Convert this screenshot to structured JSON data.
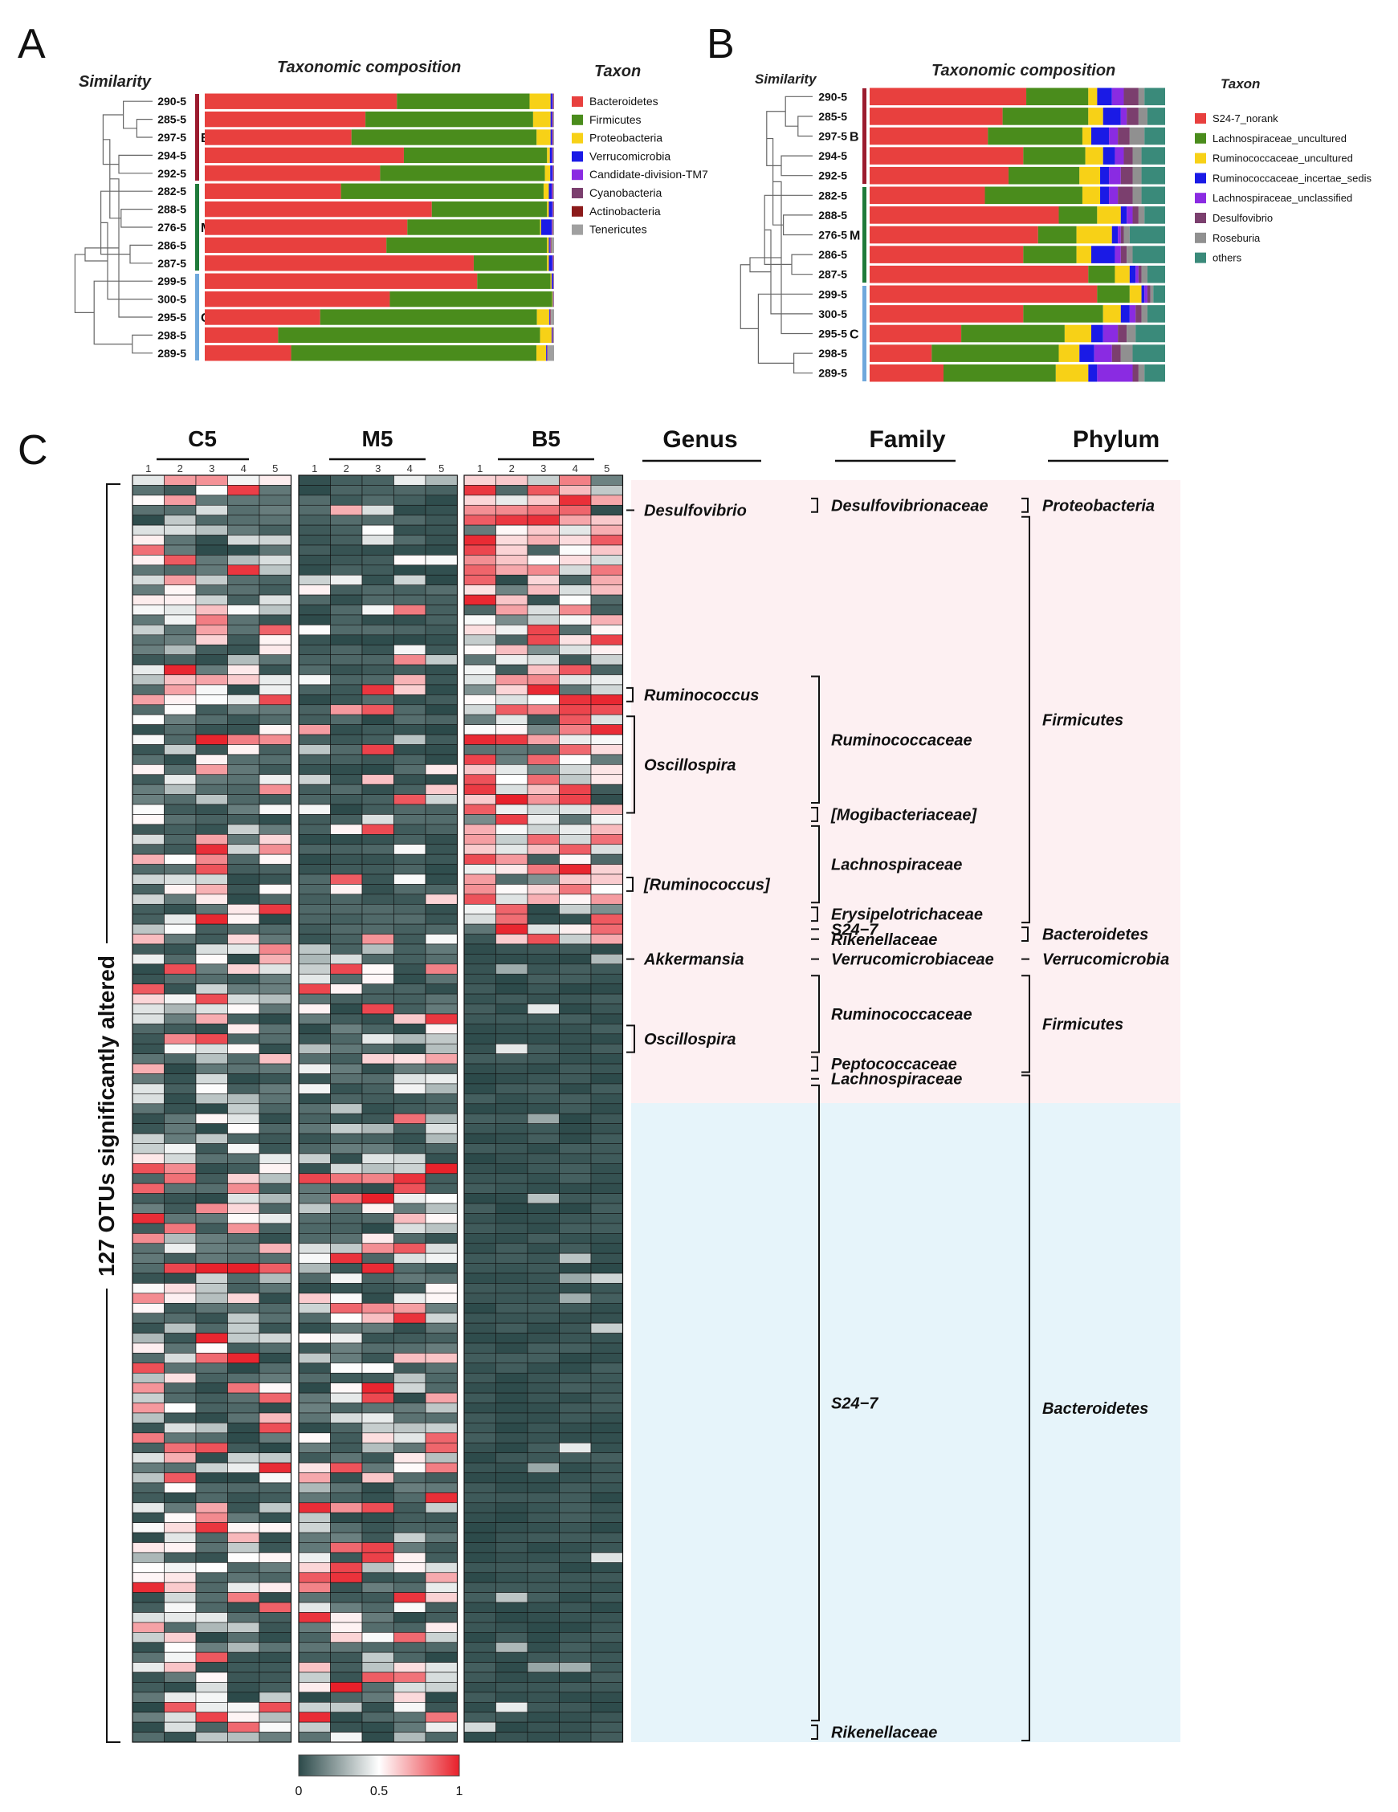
{
  "panels": {
    "a": "A",
    "b": "B",
    "c": "C"
  },
  "chart_data": [
    {
      "type": "bar",
      "orientation": "horizontal-stacked",
      "panel": "A",
      "title": "Taxonomic composition",
      "similarity_label": "Similarity",
      "legend_title": "Taxon",
      "samples": [
        "290-5",
        "285-5",
        "297-5",
        "294-5",
        "292-5",
        "282-5",
        "288-5",
        "276-5",
        "286-5",
        "287-5",
        "299-5",
        "300-5",
        "295-5",
        "298-5",
        "289-5"
      ],
      "group_labels": [
        {
          "label": "B",
          "rows": [
            0,
            4
          ]
        },
        {
          "label": "M",
          "rows": [
            5,
            9
          ]
        },
        {
          "label": "C",
          "rows": [
            10,
            14
          ]
        }
      ],
      "series": [
        {
          "name": "Bacteroidetes",
          "color": "#e8403e",
          "values": [
            55,
            46,
            42,
            57,
            50,
            39,
            65,
            58,
            52,
            77,
            78,
            53,
            33,
            21,
            25
          ]
        },
        {
          "name": "Firmicutes",
          "color": "#4a8c1c",
          "values": [
            38,
            48,
            53,
            41,
            47,
            58,
            33,
            38,
            46,
            21,
            21,
            46.5,
            62,
            75,
            71
          ]
        },
        {
          "name": "Proteobacteria",
          "color": "#f7d117",
          "values": [
            6,
            5,
            4,
            0.8,
            1.5,
            1.5,
            0.5,
            0.3,
            0.5,
            0.5,
            0.3,
            0.2,
            3.5,
            3.3,
            2.8
          ]
        },
        {
          "name": "Verrucomicrobia",
          "color": "#1a1ae6",
          "values": [
            0.5,
            0.4,
            0.4,
            0.6,
            0.6,
            0.8,
            1.0,
            3.0,
            0.3,
            1.0,
            0.4,
            0.1,
            0.2,
            0.2,
            0.2
          ]
        },
        {
          "name": "Candidate-division-TM7",
          "color": "#8a2be2",
          "values": [
            0.2,
            0.2,
            0.2,
            0.2,
            0.2,
            0.3,
            0.2,
            0.2,
            0.2,
            0.2,
            0.1,
            0.1,
            0.1,
            0.1,
            0.1
          ]
        },
        {
          "name": "Cyanobacteria",
          "color": "#7b3f6e",
          "values": [
            0.1,
            0.1,
            0.1,
            0.1,
            0.1,
            0.1,
            0.1,
            0.1,
            0.1,
            0.1,
            0.1,
            0.05,
            0.1,
            0.1,
            0.1
          ]
        },
        {
          "name": "Actinobacteria",
          "color": "#8b1a1a",
          "values": [
            0.1,
            0.1,
            0.1,
            0.1,
            0.1,
            0.1,
            0.1,
            0.1,
            0.1,
            0.1,
            0.05,
            0.05,
            0.1,
            0.1,
            0.1
          ]
        },
        {
          "name": "Tenericutes",
          "color": "#a0a0a0",
          "values": [
            0.1,
            0.2,
            0.2,
            0.2,
            0.1,
            0.2,
            0.1,
            0.3,
            0.8,
            0.1,
            0.05,
            0.05,
            0.9,
            0.2,
            1.8
          ]
        }
      ]
    },
    {
      "type": "bar",
      "orientation": "horizontal-stacked",
      "panel": "B",
      "title": "Taxonomic composition",
      "similarity_label": "Similarity",
      "legend_title": "Taxon",
      "samples": [
        "290-5",
        "285-5",
        "297-5",
        "294-5",
        "292-5",
        "282-5",
        "288-5",
        "276-5",
        "286-5",
        "287-5",
        "299-5",
        "300-5",
        "295-5",
        "298-5",
        "289-5"
      ],
      "group_labels": [
        {
          "label": "B",
          "rows": [
            0,
            4
          ]
        },
        {
          "label": "M",
          "rows": [
            5,
            9
          ]
        },
        {
          "label": "C",
          "rows": [
            10,
            14
          ]
        }
      ],
      "series": [
        {
          "name": "S24-7_norank",
          "color": "#e8403e",
          "values": [
            53,
            45,
            40,
            52,
            47,
            39,
            64,
            57,
            52,
            74,
            77,
            52,
            31,
            21,
            25
          ]
        },
        {
          "name": "Lachnospiraceae_uncultured",
          "color": "#4a8c1c",
          "values": [
            21,
            29,
            32,
            21,
            24,
            33,
            13,
            13,
            18,
            9,
            11,
            27,
            35,
            43,
            38
          ]
        },
        {
          "name": "Ruminococcaceae_uncultured",
          "color": "#f7d117",
          "values": [
            3,
            5,
            3,
            6,
            7,
            6,
            8,
            12,
            5,
            5,
            4,
            6,
            9,
            7,
            11
          ]
        },
        {
          "name": "Ruminococcaceae_incertae_sedis",
          "color": "#1a1ae6",
          "values": [
            5,
            6,
            6,
            4,
            3,
            3,
            2,
            2,
            8,
            2,
            1,
            3,
            4,
            5,
            3
          ]
        },
        {
          "name": "Lachnospiraceae_unclassified",
          "color": "#8a2be2",
          "values": [
            4,
            2,
            3,
            3,
            4,
            3,
            2,
            1,
            2,
            1,
            1,
            2,
            5,
            6,
            12
          ]
        },
        {
          "name": "Desulfovibrio",
          "color": "#7b3f6e",
          "values": [
            5,
            4,
            4,
            3,
            4,
            5,
            2,
            1,
            2,
            1,
            1,
            2,
            3,
            3,
            2
          ]
        },
        {
          "name": "Roseburia",
          "color": "#909090",
          "values": [
            2,
            3,
            5,
            3,
            3,
            3,
            2,
            2,
            2,
            2,
            1,
            2,
            3,
            4,
            2
          ]
        },
        {
          "name": "others",
          "color": "#3a8a7a",
          "values": [
            7,
            6,
            7,
            8,
            8,
            8,
            7,
            12,
            11,
            6,
            4,
            6,
            10,
            11,
            7
          ]
        }
      ]
    },
    {
      "type": "heatmap",
      "panel": "C",
      "groups": [
        "C5",
        "M5",
        "B5"
      ],
      "replicates": [
        "1",
        "2",
        "3",
        "4",
        "5"
      ],
      "n_rows": 127,
      "row_axis_label": "127 OTUs significantly altered",
      "colorbar": {
        "ticks": [
          "0",
          "0.5",
          "1"
        ],
        "colors": [
          "#2c4a4a",
          "#ffffff",
          "#e8202a"
        ]
      },
      "column_headers": {
        "genus": "Genus",
        "family": "Family",
        "phylum": "Phylum"
      },
      "block_split_row": 47,
      "genus_annotations": [
        {
          "label": "Desulfovibrio",
          "rows": [
            3,
            3
          ]
        },
        {
          "label": "Ruminococcus",
          "rows": [
            21,
            22
          ]
        },
        {
          "label": "Oscillospira",
          "rows": [
            24,
            33
          ]
        },
        {
          "label": "[Ruminococcus]",
          "rows": [
            40,
            41
          ]
        },
        {
          "label": "Akkermansia",
          "rows": [
            48,
            48
          ]
        },
        {
          "label": "Oscillospira",
          "rows": [
            55,
            57
          ]
        }
      ],
      "family_annotations": [
        {
          "label": "Desulfovibrionaceae",
          "rows": [
            2,
            3
          ]
        },
        {
          "label": "Ruminococcaceae",
          "rows": [
            20,
            32
          ]
        },
        {
          "label": "[Mogibacteriaceae]",
          "rows": [
            33,
            34
          ]
        },
        {
          "label": "Lachnospiraceae",
          "rows": [
            35,
            42
          ]
        },
        {
          "label": "Erysipelotrichaceae",
          "rows": [
            43,
            44
          ]
        },
        {
          "label": "S24−7",
          "rows": [
            45,
            45
          ]
        },
        {
          "label": "Rikenellaceae",
          "rows": [
            46,
            46
          ]
        },
        {
          "label": "Verrucomicrobiaceae",
          "rows": [
            48,
            48
          ]
        },
        {
          "label": "Ruminococcaceae",
          "rows": [
            50,
            57
          ]
        },
        {
          "label": "Peptococcaceae",
          "rows": [
            58,
            59
          ]
        },
        {
          "label": "Lachnospiraceae",
          "rows": [
            60,
            60
          ]
        },
        {
          "label": "S24−7",
          "rows": [
            61,
            124
          ]
        },
        {
          "label": "Rikenellaceae",
          "rows": [
            125,
            126
          ]
        }
      ],
      "phylum_annotations": [
        {
          "label": "Proteobacteria",
          "rows": [
            2,
            3
          ]
        },
        {
          "label": "Firmicutes",
          "rows": [
            4,
            44
          ]
        },
        {
          "label": "Bacteroidetes",
          "rows": [
            45,
            46
          ]
        },
        {
          "label": "Verrucomicrobia",
          "rows": [
            48,
            48
          ]
        },
        {
          "label": "Firmicutes",
          "rows": [
            50,
            59
          ]
        },
        {
          "label": "Bacteroidetes",
          "rows": [
            60,
            126
          ]
        }
      ]
    }
  ]
}
